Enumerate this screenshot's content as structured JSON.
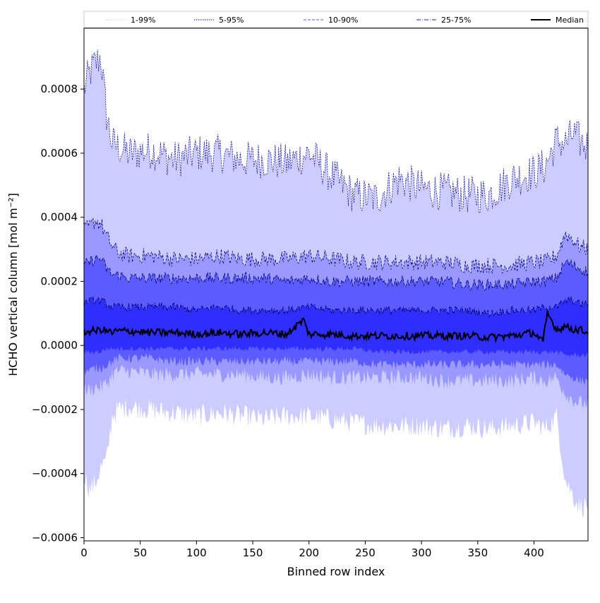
{
  "chart_data": {
    "type": "area",
    "title": "",
    "xlabel": "Binned row index",
    "ylabel": "HCHO vertical column [mol m⁻²]",
    "xlim": [
      0,
      448
    ],
    "ylim": [
      -0.00061,
      0.00099
    ],
    "x_ticks": [
      0,
      50,
      100,
      150,
      200,
      250,
      300,
      350,
      400
    ],
    "x_tick_labels": [
      "0",
      "50",
      "100",
      "150",
      "200",
      "250",
      "300",
      "350",
      "400"
    ],
    "y_ticks": [
      -0.0006,
      -0.0004,
      -0.0002,
      0.0,
      0.0002,
      0.0004,
      0.0006,
      0.0008
    ],
    "y_tick_labels": [
      "−0.0006",
      "−0.0004",
      "−0.0002",
      "0.0000",
      "0.0002",
      "0.0004",
      "0.0006",
      "0.0008"
    ],
    "grid": false,
    "legend_position": "top, above plot",
    "legend": [
      {
        "label": "1-99%",
        "color": "#c8c8ff",
        "style": "dotted"
      },
      {
        "label": "5-95%",
        "color": "#0000b4",
        "style": "dotted"
      },
      {
        "label": "10-90%",
        "color": "#5555ee",
        "style": "dashed"
      },
      {
        "label": "25-75%",
        "color": "#2222cc",
        "style": "dashdot"
      },
      {
        "label": "Median",
        "color": "#000000",
        "style": "solid"
      }
    ],
    "bands": [
      {
        "name": "1-99%",
        "fill": "#ccccff",
        "x": [
          0,
          5,
          10,
          15,
          20,
          25,
          30,
          40,
          60,
          80,
          100,
          120,
          140,
          160,
          180,
          200,
          220,
          240,
          260,
          280,
          300,
          320,
          340,
          360,
          380,
          400,
          410,
          420,
          428,
          435,
          440,
          448
        ],
        "lower": [
          -0.0004,
          -0.00045,
          -0.00043,
          -0.00038,
          -0.00036,
          -0.00022,
          -0.0002,
          -0.00019,
          -0.0002,
          -0.00021,
          -0.00022,
          -0.00021,
          -0.00022,
          -0.00023,
          -0.00022,
          -0.00022,
          -0.00023,
          -0.00024,
          -0.00025,
          -0.00025,
          -0.00025,
          -0.00026,
          -0.00025,
          -0.00026,
          -0.00025,
          -0.00024,
          -0.00026,
          -0.00022,
          -0.00042,
          -0.00047,
          -0.0005,
          -0.0005
        ],
        "upper": [
          0.0008,
          0.00085,
          0.00088,
          0.0009,
          0.00072,
          0.00063,
          0.00062,
          0.0006,
          0.00061,
          0.00058,
          0.0006,
          0.0006,
          0.00058,
          0.00058,
          0.00057,
          0.0006,
          0.00053,
          0.00047,
          0.00046,
          0.00052,
          0.00049,
          0.00048,
          0.00047,
          0.00047,
          0.00052,
          0.00054,
          0.00056,
          0.00064,
          0.00063,
          0.00066,
          0.00064,
          0.00062
        ]
      },
      {
        "name": "5-95%",
        "fill": "#9999ff",
        "x": [
          0,
          5,
          10,
          15,
          20,
          25,
          30,
          40,
          60,
          80,
          100,
          120,
          140,
          160,
          180,
          200,
          220,
          240,
          260,
          280,
          300,
          320,
          340,
          360,
          380,
          400,
          410,
          420,
          428,
          435,
          440,
          448
        ],
        "lower": [
          -0.00014,
          -0.00014,
          -0.00013,
          -0.00013,
          -0.00012,
          -9e-05,
          -8e-05,
          -8e-05,
          -9e-05,
          -9e-05,
          -9e-05,
          -9e-05,
          -9e-05,
          -0.0001,
          -0.0001,
          -9e-05,
          -0.0001,
          -0.0001,
          -0.0001,
          -0.0001,
          -0.0001,
          -0.00011,
          -0.00011,
          -0.00011,
          -0.00011,
          -0.0001,
          -0.00011,
          -0.0001,
          -0.00015,
          -0.00017,
          -0.00018,
          -0.00018
        ],
        "upper": [
          0.00036,
          0.00037,
          0.00039,
          0.00038,
          0.00034,
          0.00031,
          0.00029,
          0.00028,
          0.00028,
          0.00027,
          0.00027,
          0.00028,
          0.00027,
          0.00027,
          0.00027,
          0.00028,
          0.00027,
          0.00026,
          0.00026,
          0.00026,
          0.00026,
          0.00026,
          0.00025,
          0.00025,
          0.00025,
          0.00026,
          0.00026,
          0.00028,
          0.00035,
          0.00033,
          0.00031,
          0.0003
        ]
      },
      {
        "name": "10-90%",
        "fill": "#5b5bff",
        "x": [
          0,
          5,
          10,
          15,
          20,
          25,
          30,
          40,
          60,
          80,
          100,
          120,
          140,
          160,
          180,
          200,
          220,
          240,
          260,
          280,
          300,
          320,
          340,
          360,
          380,
          400,
          410,
          420,
          428,
          435,
          440,
          448
        ],
        "lower": [
          -8e-05,
          -8e-05,
          -7e-05,
          -7e-05,
          -6e-05,
          -5e-05,
          -4e-05,
          -4e-05,
          -4e-05,
          -5e-05,
          -5e-05,
          -5e-05,
          -5e-05,
          -5e-05,
          -5e-05,
          -5e-05,
          -5e-05,
          -5e-05,
          -6e-05,
          -6e-05,
          -6e-05,
          -6e-05,
          -6e-05,
          -6e-05,
          -6e-05,
          -6e-05,
          -6e-05,
          -6e-05,
          -9e-05,
          -0.0001,
          -0.00011,
          -0.00011
        ],
        "upper": [
          0.00025,
          0.00026,
          0.00027,
          0.00027,
          0.00024,
          0.00022,
          0.00022,
          0.00021,
          0.00021,
          0.00021,
          0.00021,
          0.00021,
          0.00021,
          0.00021,
          0.0002,
          0.00021,
          0.0002,
          0.0002,
          0.0002,
          0.0002,
          0.0002,
          0.0002,
          0.00019,
          0.00019,
          0.00019,
          0.0002,
          0.0002,
          0.00021,
          0.00026,
          0.00025,
          0.00024,
          0.00023
        ]
      },
      {
        "name": "25-75%",
        "fill": "#2e2eff",
        "x": [
          0,
          5,
          10,
          15,
          20,
          25,
          30,
          40,
          60,
          80,
          100,
          120,
          140,
          160,
          180,
          200,
          220,
          240,
          260,
          280,
          300,
          320,
          340,
          360,
          380,
          400,
          410,
          420,
          428,
          435,
          440,
          448
        ],
        "lower": [
          -2e-05,
          -2e-05,
          -2e-05,
          -2e-05,
          -1e-05,
          -1e-05,
          -1e-05,
          -1e-05,
          -1e-05,
          -1e-05,
          -1e-05,
          -1e-05,
          -1e-05,
          -1e-05,
          -1e-05,
          -1e-05,
          -1e-05,
          -1e-05,
          -2e-05,
          -2e-05,
          -2e-05,
          -2e-05,
          -2e-05,
          -2e-05,
          -2e-05,
          -2e-05,
          -2e-05,
          -2e-05,
          -3e-05,
          -3e-05,
          -3e-05,
          -3e-05
        ],
        "upper": [
          0.00013,
          0.00014,
          0.00014,
          0.00014,
          0.00013,
          0.00012,
          0.00012,
          0.00012,
          0.00012,
          0.00012,
          0.00011,
          0.00012,
          0.00011,
          0.00011,
          0.00011,
          0.00012,
          0.00011,
          0.00011,
          0.00011,
          0.00011,
          0.00011,
          0.00011,
          0.00011,
          0.0001,
          0.00011,
          0.00011,
          0.00012,
          0.00012,
          0.00014,
          0.00014,
          0.00013,
          0.00013
        ]
      }
    ],
    "median": {
      "name": "Median",
      "color": "#000000",
      "x": [
        0,
        5,
        10,
        15,
        20,
        25,
        30,
        40,
        60,
        80,
        100,
        120,
        140,
        160,
        180,
        195,
        200,
        220,
        240,
        260,
        280,
        300,
        320,
        340,
        360,
        380,
        400,
        408,
        412,
        420,
        428,
        435,
        440,
        448
      ],
      "values": [
        4e-05,
        4.5e-05,
        4.5e-05,
        5e-05,
        4.5e-05,
        4e-05,
        4.5e-05,
        4.5e-05,
        4e-05,
        4e-05,
        3.5e-05,
        4e-05,
        3.5e-05,
        4e-05,
        3.5e-05,
        8e-05,
        3.5e-05,
        3.5e-05,
        3e-05,
        3e-05,
        3e-05,
        3e-05,
        3e-05,
        3e-05,
        2.5e-05,
        3e-05,
        4e-05,
        1e-05,
        0.0001,
        5e-05,
        6e-05,
        5e-05,
        5e-05,
        4e-05
      ]
    }
  }
}
